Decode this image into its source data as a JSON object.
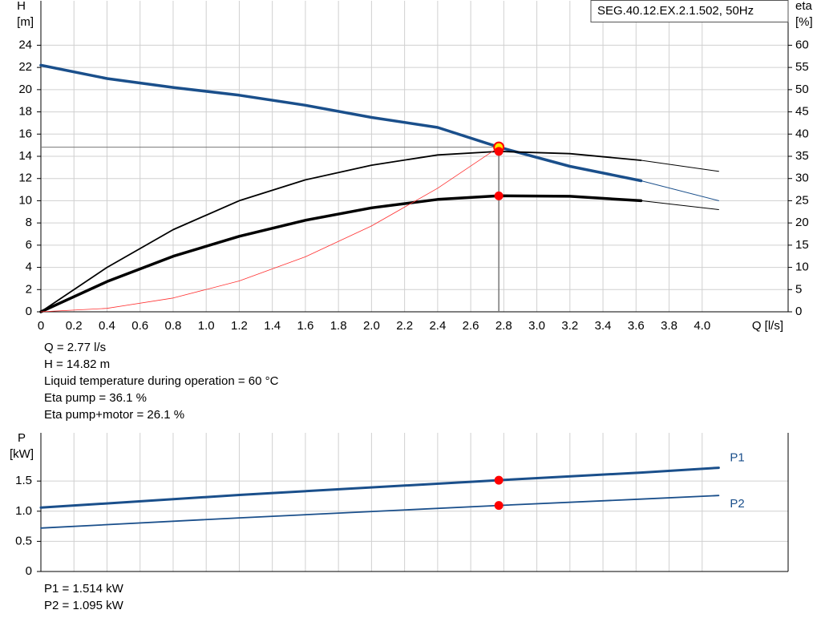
{
  "chart_data": [
    {
      "type": "line",
      "title": "SEG.40.12.EX.2.1.502, 50Hz",
      "ylabel": "H",
      "yunit": "[m]",
      "y2label": "eta",
      "y2unit": "[%]",
      "xlabel": "Q [l/s]",
      "xlim": [
        0,
        4.52
      ],
      "ylim": [
        0,
        28
      ],
      "y2lim": [
        0,
        70
      ],
      "xticks": [
        0,
        0.2,
        0.4,
        0.6,
        0.8,
        {
          "value": 1,
          "label": "1.0"
        },
        1.2,
        1.4,
        1.6,
        1.8,
        {
          "value": 2,
          "label": "2.0"
        },
        2.2,
        2.4,
        2.6,
        2.8,
        {
          "value": 3,
          "label": "3.0"
        },
        3.2,
        3.4,
        3.6,
        3.8,
        {
          "value": 4,
          "label": "4.0"
        }
      ],
      "yticks": [
        0,
        2,
        4,
        6,
        8,
        10,
        12,
        14,
        16,
        18,
        20,
        22,
        24
      ],
      "y2ticks": [
        0,
        5,
        10,
        15,
        20,
        25,
        30,
        35,
        40,
        45,
        50,
        55,
        60
      ],
      "grid": true,
      "xtick_labels": true,
      "series": [
        {
          "color": "#1a4f8b",
          "width": 3.5,
          "x": [
            0,
            0.4,
            0.8,
            1.2,
            1.6,
            2.0,
            2.4,
            2.77,
            3.2,
            3.63
          ],
          "values": [
            22.2,
            21.0,
            20.2,
            19.5,
            18.6,
            17.5,
            16.6,
            14.82,
            13.1,
            11.8
          ]
        },
        {
          "color": "#1a4f8b",
          "width": 1,
          "x": [
            3.63,
            4.1
          ],
          "values": [
            11.8,
            10.0
          ]
        },
        {
          "color": "#000000",
          "width": 1.8,
          "axis": "y2",
          "x": [
            0,
            0.4,
            0.8,
            1.2,
            1.6,
            2.0,
            2.4,
            2.77,
            3.2,
            3.63
          ],
          "values": [
            0,
            10,
            18.5,
            25,
            29.7,
            33,
            35.3,
            36.1,
            35.6,
            34.1
          ]
        },
        {
          "color": "#000000",
          "width": 1,
          "axis": "y2",
          "x": [
            3.63,
            4.1
          ],
          "values": [
            34.1,
            31.6
          ]
        },
        {
          "color": "#000000",
          "width": 3.5,
          "axis": "y2",
          "x": [
            0,
            0.4,
            0.8,
            1.2,
            1.6,
            2.0,
            2.4,
            2.77,
            3.2,
            3.63
          ],
          "values": [
            0,
            6.8,
            12.5,
            17,
            20.6,
            23.4,
            25.3,
            26.1,
            26,
            25
          ]
        },
        {
          "color": "#000000",
          "width": 1,
          "axis": "y2",
          "x": [
            3.63,
            4.1
          ],
          "values": [
            25,
            23
          ]
        },
        {
          "color": "#ff3030",
          "width": 0.8,
          "x": [
            0,
            0.4,
            0.8,
            1.2,
            1.6,
            2.0,
            2.4,
            2.77
          ],
          "values": [
            0,
            0.31,
            1.24,
            2.78,
            4.95,
            7.73,
            11.13,
            14.82
          ]
        }
      ],
      "markers": [
        {
          "x": 2.77,
          "y": 14.82,
          "color": "#ffe600",
          "edge": "#ff0000",
          "crosshair": true
        },
        {
          "x": 2.77,
          "y": 36.1,
          "axis": "y2",
          "color": "#ff0000"
        },
        {
          "x": 2.77,
          "y": 26.1,
          "axis": "y2",
          "color": "#ff0000"
        }
      ],
      "annotations": [
        "Q = 2.77 l/s",
        "H = 14.82 m",
        "Liquid temperature during operation = 60 °C",
        "Eta pump = 36.1 %",
        "Eta pump+motor = 26.1 %"
      ]
    },
    {
      "type": "line",
      "ylabel": "P",
      "yunit": "[kW]",
      "xlim": [
        0,
        4.52
      ],
      "ylim": [
        0,
        2.3
      ],
      "xticks": [
        0,
        0.2,
        0.4,
        0.6,
        0.8,
        {
          "value": 1,
          "label": "1.0"
        },
        1.2,
        1.4,
        1.6,
        1.8,
        {
          "value": 2,
          "label": "2.0"
        },
        2.2,
        2.4,
        2.6,
        2.8,
        {
          "value": 3,
          "label": "3.0"
        },
        3.2,
        3.4,
        3.6,
        3.8,
        {
          "value": 4,
          "label": "4.0"
        }
      ],
      "yticks": [
        0,
        0.5,
        {
          "value": 1,
          "label": "1.0"
        },
        1.5
      ],
      "grid": true,
      "xtick_labels": false,
      "series": [
        {
          "name": "P1",
          "color": "#1a4f8b",
          "width": 3,
          "x": [
            0,
            1.2,
            2.77,
            3.63,
            4.1
          ],
          "values": [
            1.06,
            1.27,
            1.514,
            1.64,
            1.72
          ]
        },
        {
          "name": "P2",
          "color": "#1a4f8b",
          "width": 1.8,
          "x": [
            0,
            1.2,
            2.77,
            3.63,
            4.1
          ],
          "values": [
            0.72,
            0.89,
            1.095,
            1.2,
            1.26
          ]
        }
      ],
      "markers": [
        {
          "x": 2.77,
          "y": 1.514,
          "color": "#ff0000"
        },
        {
          "x": 2.77,
          "y": 1.095,
          "color": "#ff0000"
        }
      ],
      "annotations": [
        "P1 = 1.514 kW",
        "P2 = 1.095 kW"
      ]
    }
  ]
}
